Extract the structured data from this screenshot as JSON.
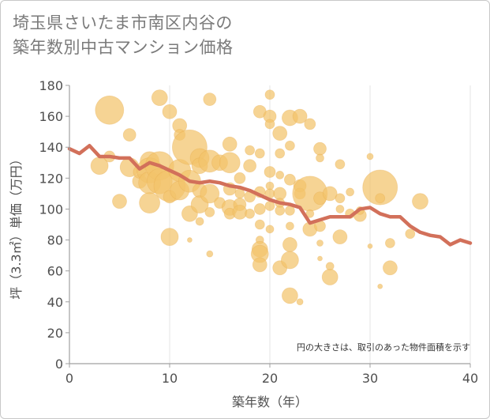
{
  "title_lines": [
    "埼玉県さいたま市南区内谷の",
    "築年数別中古マンション価格"
  ],
  "chart_data": {
    "type": "scatter",
    "title": "埼玉県さいたま市南区内谷の築年数別中古マンション価格",
    "xlabel": "築年数（年）",
    "ylabel": "坪（3.3㎡）単価（万円）",
    "xlim": [
      0,
      40
    ],
    "ylim": [
      0,
      180
    ],
    "xticks": [
      "0",
      "10",
      "20",
      "30",
      "40"
    ],
    "yticks": [
      "0",
      "20",
      "40",
      "60",
      "80",
      "100",
      "120",
      "140",
      "160",
      "180"
    ],
    "grid": "vertical",
    "note": "円の大きさは、取引のあった物件面積を示す",
    "colors": {
      "bubble": "#f2c36b",
      "line": "#d2705a",
      "axis": "#a0a0a0",
      "grid": "#e4e4e4"
    },
    "bubbles": [
      {
        "x": 4,
        "y": 164,
        "s": 18
      },
      {
        "x": 3,
        "y": 128,
        "s": 11
      },
      {
        "x": 4,
        "y": 134,
        "s": 7
      },
      {
        "x": 5,
        "y": 105,
        "s": 9
      },
      {
        "x": 6,
        "y": 148,
        "s": 8
      },
      {
        "x": 6,
        "y": 127,
        "s": 12
      },
      {
        "x": 7,
        "y": 118,
        "s": 9
      },
      {
        "x": 7,
        "y": 124,
        "s": 8
      },
      {
        "x": 8,
        "y": 131,
        "s": 12
      },
      {
        "x": 8,
        "y": 125,
        "s": 16
      },
      {
        "x": 8,
        "y": 117,
        "s": 14
      },
      {
        "x": 8,
        "y": 104,
        "s": 13
      },
      {
        "x": 9,
        "y": 172,
        "s": 10
      },
      {
        "x": 9,
        "y": 128,
        "s": 18
      },
      {
        "x": 9,
        "y": 118,
        "s": 16
      },
      {
        "x": 10,
        "y": 163,
        "s": 9
      },
      {
        "x": 10,
        "y": 115,
        "s": 20
      },
      {
        "x": 10,
        "y": 108,
        "s": 8
      },
      {
        "x": 10,
        "y": 82,
        "s": 11
      },
      {
        "x": 11,
        "y": 154,
        "s": 9
      },
      {
        "x": 11,
        "y": 148,
        "s": 7
      },
      {
        "x": 11,
        "y": 125,
        "s": 14
      },
      {
        "x": 11,
        "y": 112,
        "s": 12
      },
      {
        "x": 12,
        "y": 140,
        "s": 22
      },
      {
        "x": 12,
        "y": 118,
        "s": 14
      },
      {
        "x": 12,
        "y": 97,
        "s": 10
      },
      {
        "x": 12,
        "y": 80,
        "s": 3
      },
      {
        "x": 13,
        "y": 133,
        "s": 12
      },
      {
        "x": 13,
        "y": 128,
        "s": 10
      },
      {
        "x": 13,
        "y": 112,
        "s": 9
      },
      {
        "x": 13,
        "y": 103,
        "s": 11
      },
      {
        "x": 13,
        "y": 92,
        "s": 5
      },
      {
        "x": 14,
        "y": 171,
        "s": 8
      },
      {
        "x": 14,
        "y": 131,
        "s": 14
      },
      {
        "x": 14,
        "y": 110,
        "s": 12
      },
      {
        "x": 14,
        "y": 98,
        "s": 6
      },
      {
        "x": 14,
        "y": 71,
        "s": 4
      },
      {
        "x": 15,
        "y": 130,
        "s": 10
      },
      {
        "x": 15,
        "y": 104,
        "s": 7
      },
      {
        "x": 16,
        "y": 142,
        "s": 9
      },
      {
        "x": 16,
        "y": 130,
        "s": 13
      },
      {
        "x": 16,
        "y": 113,
        "s": 8
      },
      {
        "x": 16,
        "y": 101,
        "s": 10
      },
      {
        "x": 16,
        "y": 97,
        "s": 7
      },
      {
        "x": 17,
        "y": 120,
        "s": 7
      },
      {
        "x": 17,
        "y": 110,
        "s": 6
      },
      {
        "x": 17,
        "y": 103,
        "s": 8
      },
      {
        "x": 17,
        "y": 98,
        "s": 9
      },
      {
        "x": 18,
        "y": 138,
        "s": 6
      },
      {
        "x": 18,
        "y": 128,
        "s": 8
      },
      {
        "x": 18,
        "y": 108,
        "s": 7
      },
      {
        "x": 18,
        "y": 97,
        "s": 6
      },
      {
        "x": 19,
        "y": 163,
        "s": 8
      },
      {
        "x": 19,
        "y": 136,
        "s": 6
      },
      {
        "x": 19,
        "y": 111,
        "s": 7
      },
      {
        "x": 19,
        "y": 100,
        "s": 7
      },
      {
        "x": 19,
        "y": 90,
        "s": 6
      },
      {
        "x": 19,
        "y": 80,
        "s": 5
      },
      {
        "x": 19,
        "y": 74,
        "s": 10
      },
      {
        "x": 19,
        "y": 71,
        "s": 11
      },
      {
        "x": 19,
        "y": 64,
        "s": 9
      },
      {
        "x": 20,
        "y": 174,
        "s": 6
      },
      {
        "x": 20,
        "y": 160,
        "s": 8
      },
      {
        "x": 20,
        "y": 155,
        "s": 6
      },
      {
        "x": 20,
        "y": 124,
        "s": 7
      },
      {
        "x": 20,
        "y": 115,
        "s": 5
      },
      {
        "x": 20,
        "y": 110,
        "s": 6
      },
      {
        "x": 20,
        "y": 102,
        "s": 6
      },
      {
        "x": 20,
        "y": 87,
        "s": 5
      },
      {
        "x": 21,
        "y": 149,
        "s": 9
      },
      {
        "x": 21,
        "y": 136,
        "s": 6
      },
      {
        "x": 21,
        "y": 122,
        "s": 5
      },
      {
        "x": 21,
        "y": 110,
        "s": 8
      },
      {
        "x": 21,
        "y": 104,
        "s": 6
      },
      {
        "x": 21,
        "y": 99,
        "s": 6
      },
      {
        "x": 21,
        "y": 62,
        "s": 9
      },
      {
        "x": 22,
        "y": 159,
        "s": 10
      },
      {
        "x": 22,
        "y": 141,
        "s": 6
      },
      {
        "x": 22,
        "y": 119,
        "s": 7
      },
      {
        "x": 22,
        "y": 99,
        "s": 6
      },
      {
        "x": 22,
        "y": 89,
        "s": 5
      },
      {
        "x": 22,
        "y": 77,
        "s": 9
      },
      {
        "x": 22,
        "y": 67,
        "s": 11
      },
      {
        "x": 22,
        "y": 44,
        "s": 10
      },
      {
        "x": 23,
        "y": 160,
        "s": 9
      },
      {
        "x": 23,
        "y": 115,
        "s": 8
      },
      {
        "x": 23,
        "y": 110,
        "s": 7
      },
      {
        "x": 23,
        "y": 40,
        "s": 4
      },
      {
        "x": 24,
        "y": 155,
        "s": 7
      },
      {
        "x": 24,
        "y": 110,
        "s": 22
      },
      {
        "x": 24,
        "y": 97,
        "s": 5
      },
      {
        "x": 24,
        "y": 87,
        "s": 9
      },
      {
        "x": 25,
        "y": 139,
        "s": 8
      },
      {
        "x": 25,
        "y": 133,
        "s": 5
      },
      {
        "x": 25,
        "y": 107,
        "s": 8
      },
      {
        "x": 25,
        "y": 89,
        "s": 7
      },
      {
        "x": 25,
        "y": 78,
        "s": 4
      },
      {
        "x": 25,
        "y": 68,
        "s": 3
      },
      {
        "x": 26,
        "y": 110,
        "s": 9
      },
      {
        "x": 26,
        "y": 63,
        "s": 5
      },
      {
        "x": 26,
        "y": 56,
        "s": 10
      },
      {
        "x": 27,
        "y": 129,
        "s": 6
      },
      {
        "x": 27,
        "y": 107,
        "s": 6
      },
      {
        "x": 27,
        "y": 100,
        "s": 5
      },
      {
        "x": 27,
        "y": 82,
        "s": 9
      },
      {
        "x": 28,
        "y": 111,
        "s": 5
      },
      {
        "x": 28,
        "y": 97,
        "s": 6
      },
      {
        "x": 29,
        "y": 96,
        "s": 8
      },
      {
        "x": 29,
        "y": 99,
        "s": 5
      },
      {
        "x": 30,
        "y": 134,
        "s": 4
      },
      {
        "x": 30,
        "y": 76,
        "s": 3
      },
      {
        "x": 31,
        "y": 114,
        "s": 22
      },
      {
        "x": 31,
        "y": 107,
        "s": 6
      },
      {
        "x": 31,
        "y": 50,
        "s": 3
      },
      {
        "x": 32,
        "y": 78,
        "s": 6
      },
      {
        "x": 32,
        "y": 62,
        "s": 9
      },
      {
        "x": 35,
        "y": 105,
        "s": 10
      },
      {
        "x": 34,
        "y": 84,
        "s": 6
      }
    ],
    "line": {
      "x": [
        0,
        1,
        2,
        3,
        4,
        5,
        6,
        7,
        8,
        9,
        10,
        11,
        12,
        13,
        14,
        15,
        16,
        17,
        18,
        19,
        20,
        21,
        22,
        23,
        24,
        25,
        26,
        27,
        28,
        29,
        30,
        31,
        32,
        33,
        34,
        35,
        36,
        37,
        38,
        39,
        40
      ],
      "y": [
        139,
        136,
        141,
        134,
        134,
        133,
        133,
        126,
        130,
        128,
        125,
        122,
        118,
        117,
        118,
        117,
        115,
        114,
        112,
        109,
        106,
        104,
        103,
        101,
        91,
        93,
        95,
        95,
        95,
        100,
        101,
        97,
        95,
        95,
        89,
        85,
        83,
        82,
        77,
        80,
        78
      ]
    }
  }
}
